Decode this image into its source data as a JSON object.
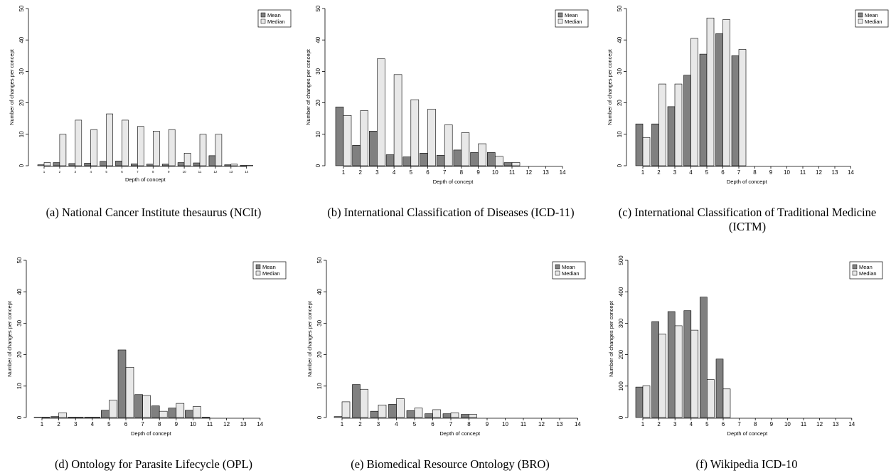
{
  "colors": {
    "mean": "#808080",
    "median": "#e8e8e8",
    "stroke": "#000000"
  },
  "legend_labels": [
    "Mean",
    "Median"
  ],
  "chart_data": [
    {
      "type": "bar",
      "caption": "(a) National Cancer Institute thesaurus (NCIt)",
      "xlabel": "Depth of concept",
      "ylabel": "Number of changes per concept",
      "ylim": [
        0,
        50
      ],
      "yticks": [
        0,
        10,
        20,
        30,
        40,
        50
      ],
      "categories": [
        "1",
        "2",
        "3",
        "4",
        "5",
        "6",
        "7",
        "8",
        "9",
        "10",
        "11",
        "12",
        "13",
        "14"
      ],
      "legend": "top-right",
      "series": [
        {
          "name": "Mean",
          "values": [
            0.3,
            1,
            0.7,
            0.8,
            1.4,
            1.5,
            0.6,
            0.5,
            0.5,
            1,
            0.9,
            3.2,
            0.3,
            0.1
          ]
        },
        {
          "name": "Median",
          "values": [
            1,
            10,
            14.5,
            11.5,
            16.5,
            14.5,
            12.5,
            11,
            11.5,
            4,
            10,
            10,
            0.5,
            0.1
          ]
        }
      ]
    },
    {
      "type": "bar",
      "caption": "(b) International Classification of Diseases (ICD-11)",
      "xlabel": "Depth of concept",
      "ylabel": "Number of changes per concept",
      "ylim": [
        0,
        50
      ],
      "yticks": [
        0,
        10,
        20,
        30,
        40,
        50
      ],
      "categories": [
        "1",
        "2",
        "3",
        "4",
        "5",
        "6",
        "7",
        "8",
        "9",
        "10",
        "11",
        "12",
        "13",
        "14"
      ],
      "legend": "top-right",
      "series": [
        {
          "name": "Mean",
          "values": [
            18.7,
            6.5,
            11,
            3.5,
            2.8,
            4,
            3.3,
            5,
            4.2,
            4.2,
            1,
            null,
            null,
            null
          ]
        },
        {
          "name": "Median",
          "values": [
            16,
            17.5,
            34,
            29,
            21,
            18,
            13,
            10.5,
            7,
            3,
            1,
            null,
            null,
            null
          ]
        }
      ]
    },
    {
      "type": "bar",
      "caption": "(c) International Classification of Traditional Medicine (ICTM)",
      "xlabel": "Depth of concept",
      "ylabel": "Number of changes per concept",
      "ylim": [
        0,
        50
      ],
      "yticks": [
        0,
        10,
        20,
        30,
        40,
        50
      ],
      "categories": [
        "1",
        "2",
        "3",
        "4",
        "5",
        "6",
        "7",
        "8",
        "9",
        "10",
        "11",
        "12",
        "13",
        "14"
      ],
      "legend": "top-right",
      "series": [
        {
          "name": "Mean",
          "values": [
            13.3,
            13.3,
            18.8,
            28.8,
            35.5,
            42,
            35,
            null,
            null,
            null,
            null,
            null,
            null,
            null
          ]
        },
        {
          "name": "Median",
          "values": [
            9,
            26,
            26,
            40.5,
            47,
            46.5,
            37,
            null,
            null,
            null,
            null,
            null,
            null,
            null
          ]
        }
      ]
    },
    {
      "type": "bar",
      "caption": "(d) Ontology for Parasite Lifecycle (OPL)",
      "xlabel": "Depth of concept",
      "ylabel": "Number of changes per concept",
      "ylim": [
        0,
        50
      ],
      "yticks": [
        0,
        10,
        20,
        30,
        40,
        50
      ],
      "categories": [
        "1",
        "2",
        "3",
        "4",
        "5",
        "6",
        "7",
        "8",
        "9",
        "10",
        "11",
        "12",
        "13",
        "14"
      ],
      "legend": "top-right",
      "series": [
        {
          "name": "Mean",
          "values": [
            0.1,
            0.3,
            0.1,
            0.1,
            2.3,
            21.5,
            7.3,
            3.7,
            3,
            2.3,
            0.1,
            null,
            null,
            null
          ]
        },
        {
          "name": "Median",
          "values": [
            0.1,
            1.5,
            0.1,
            0.1,
            5.5,
            16,
            7,
            2,
            4.5,
            3.5,
            null,
            null,
            null,
            null
          ]
        }
      ]
    },
    {
      "type": "bar",
      "caption": "(e) Biomedical Resource Ontology (BRO)",
      "xlabel": "Depth of concept",
      "ylabel": "Number of changes per concept",
      "ylim": [
        0,
        50
      ],
      "yticks": [
        0,
        10,
        20,
        30,
        40,
        50
      ],
      "categories": [
        "1",
        "2",
        "3",
        "4",
        "5",
        "6",
        "7",
        "8",
        "9",
        "10",
        "11",
        "12",
        "13",
        "14"
      ],
      "legend": "top-right",
      "series": [
        {
          "name": "Mean",
          "values": [
            0.3,
            10.5,
            2,
            4.2,
            2.2,
            1.2,
            1.2,
            1,
            null,
            null,
            null,
            null,
            null,
            null
          ]
        },
        {
          "name": "Median",
          "values": [
            5,
            9,
            4,
            6,
            3,
            2.5,
            1.5,
            1,
            null,
            null,
            null,
            null,
            null,
            null
          ]
        }
      ]
    },
    {
      "type": "bar",
      "caption": "(f) Wikipedia ICD-10",
      "xlabel": "Depth of concept",
      "ylabel": "Number of changes per concept",
      "ylim": [
        0,
        500
      ],
      "yticks": [
        0,
        100,
        200,
        300,
        400,
        500
      ],
      "categories": [
        "1",
        "2",
        "3",
        "4",
        "5",
        "6",
        "7",
        "8",
        "9",
        "10",
        "11",
        "12",
        "13",
        "14"
      ],
      "legend": "top-right",
      "series": [
        {
          "name": "Mean",
          "values": [
            97,
            305,
            337,
            340,
            383,
            186,
            null,
            null,
            null,
            null,
            null,
            null,
            null,
            null
          ]
        },
        {
          "name": "Median",
          "values": [
            101,
            265,
            292,
            278,
            121,
            91,
            null,
            null,
            null,
            null,
            null,
            null,
            null,
            null
          ]
        }
      ]
    }
  ]
}
